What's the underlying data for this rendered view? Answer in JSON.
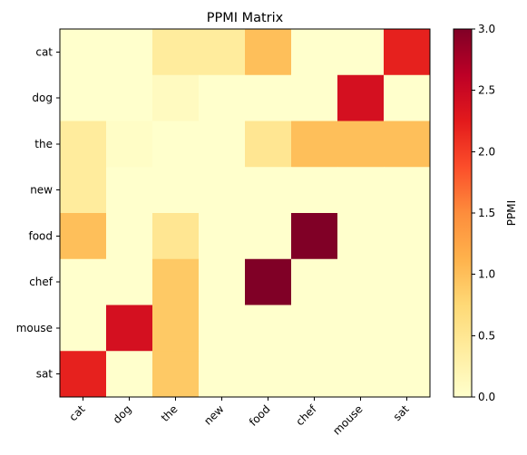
{
  "chart_data": {
    "type": "heatmap",
    "title": "PPMI Matrix",
    "rows": [
      "cat",
      "dog",
      "the",
      "new",
      "food",
      "chef",
      "mouse",
      "sat"
    ],
    "columns": [
      "cat",
      "dog",
      "the",
      "new",
      "food",
      "chef",
      "mouse",
      "sat"
    ],
    "values": [
      [
        0.0,
        0.0,
        0.4,
        0.4,
        1.0,
        0.0,
        0.0,
        2.2
      ],
      [
        0.0,
        0.0,
        0.1,
        0.0,
        0.0,
        0.0,
        2.4,
        0.0
      ],
      [
        0.4,
        0.05,
        0.0,
        0.0,
        0.5,
        1.0,
        1.0,
        1.0
      ],
      [
        0.4,
        0.0,
        0.0,
        0.0,
        0.0,
        0.0,
        0.0,
        0.0
      ],
      [
        1.0,
        0.0,
        0.5,
        0.0,
        0.0,
        3.0,
        0.0,
        0.0
      ],
      [
        0.0,
        0.0,
        0.9,
        0.0,
        3.0,
        0.0,
        0.0,
        0.0
      ],
      [
        0.0,
        2.4,
        0.9,
        0.0,
        0.0,
        0.0,
        0.0,
        0.0
      ],
      [
        2.2,
        0.0,
        0.9,
        0.0,
        0.0,
        0.0,
        0.0,
        0.0
      ]
    ],
    "colorbar": {
      "label": "PPMI",
      "range": [
        0,
        3.0
      ],
      "ticks": [
        "0.0",
        "0.5",
        "1.0",
        "1.5",
        "2.0",
        "2.5",
        "3.0"
      ],
      "colormap": "YlOrRd",
      "stops": [
        "#ffffcc",
        "#ffeda0",
        "#fed976",
        "#feb24c",
        "#fd8d3c",
        "#fc4e2a",
        "#e31a1c",
        "#bd0026",
        "#800026"
      ]
    }
  }
}
